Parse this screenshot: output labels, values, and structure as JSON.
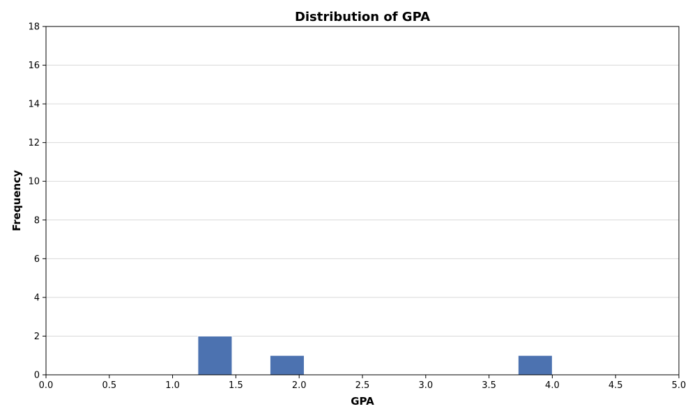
{
  "chart_data": {
    "type": "bar",
    "title": "Distribution of GPA",
    "xlabel": "GPA",
    "ylabel": "Frequency",
    "xlim": [
      0.0,
      5.0
    ],
    "ylim": [
      0,
      18
    ],
    "x_ticks": [
      "0.0",
      "0.5",
      "1.0",
      "1.5",
      "2.0",
      "2.5",
      "3.0",
      "3.5",
      "4.0",
      "4.5",
      "5.0"
    ],
    "y_ticks": [
      "0",
      "2",
      "4",
      "6",
      "8",
      "10",
      "12",
      "14",
      "16",
      "18"
    ],
    "grid": "horizontal",
    "bins": [
      {
        "x0": 1.2,
        "x1": 1.47,
        "count": 2
      },
      {
        "x0": 1.77,
        "x1": 2.04,
        "count": 1
      },
      {
        "x0": 3.73,
        "x1": 4.0,
        "count": 1
      }
    ],
    "bar_color": "#4c72b0",
    "grid_color": "#d9d9d9"
  }
}
